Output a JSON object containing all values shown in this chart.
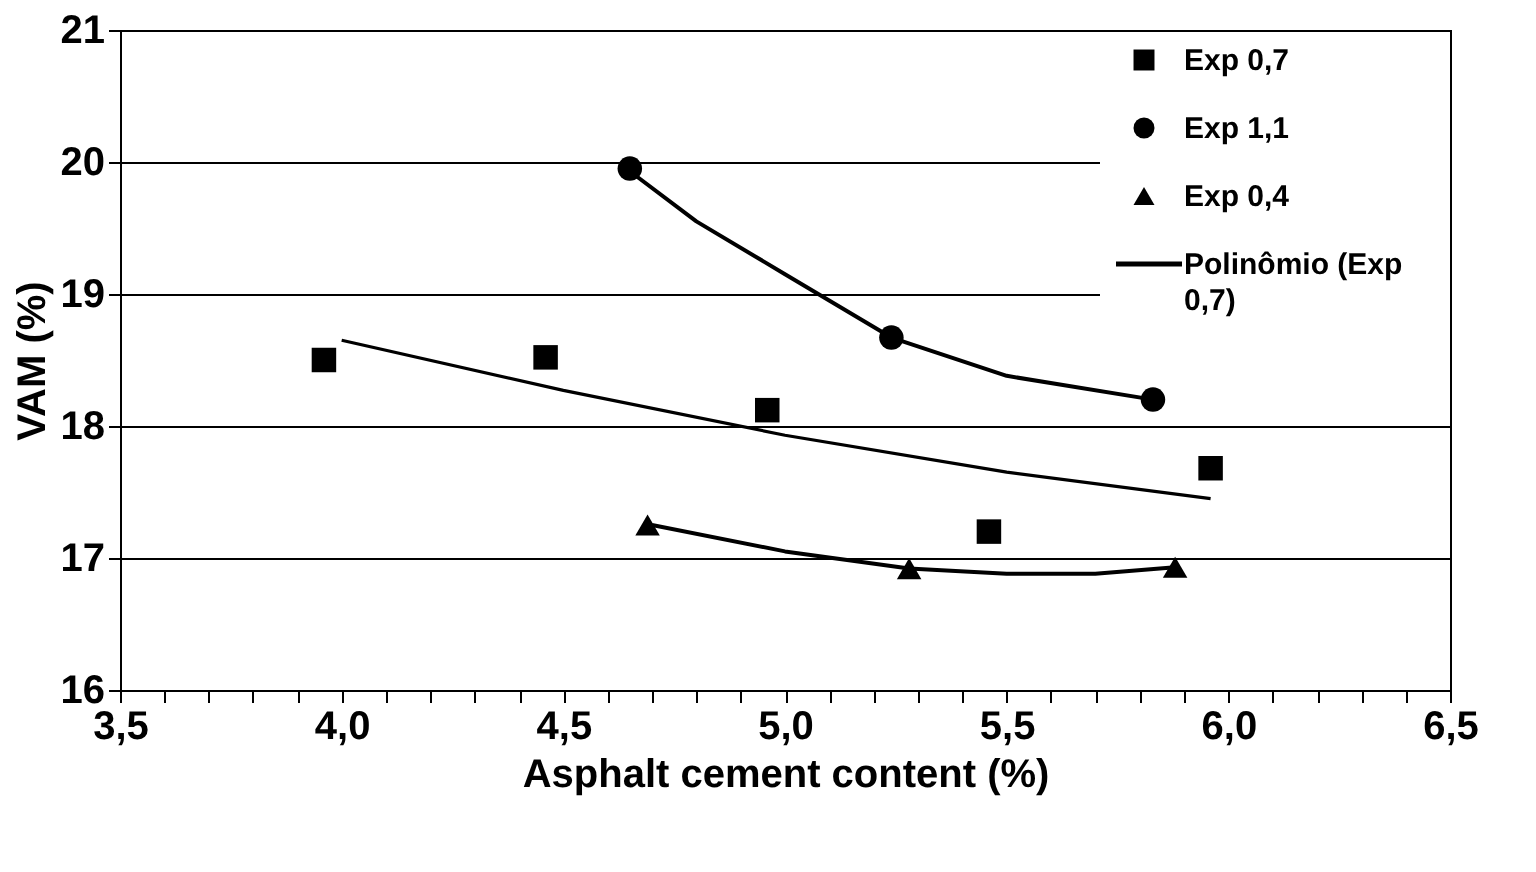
{
  "chart_data": {
    "type": "scatter",
    "xlabel": "Asphalt cement content (%)",
    "ylabel": "VAM (%)",
    "xlim": [
      3.5,
      6.5
    ],
    "ylim": [
      16,
      21
    ],
    "xticks": [
      {
        "value": 3.5,
        "label": "3,5"
      },
      {
        "value": 3.6,
        "label": null
      },
      {
        "value": 3.7,
        "label": null
      },
      {
        "value": 3.8,
        "label": null
      },
      {
        "value": 3.9,
        "label": null
      },
      {
        "value": 4.0,
        "label": "4,0"
      },
      {
        "value": 4.1,
        "label": null
      },
      {
        "value": 4.2,
        "label": null
      },
      {
        "value": 4.3,
        "label": null
      },
      {
        "value": 4.4,
        "label": null
      },
      {
        "value": 4.5,
        "label": "4,5"
      },
      {
        "value": 4.6,
        "label": null
      },
      {
        "value": 4.7,
        "label": null
      },
      {
        "value": 4.8,
        "label": null
      },
      {
        "value": 4.9,
        "label": null
      },
      {
        "value": 5.0,
        "label": "5,0"
      },
      {
        "value": 5.1,
        "label": null
      },
      {
        "value": 5.2,
        "label": null
      },
      {
        "value": 5.3,
        "label": null
      },
      {
        "value": 5.4,
        "label": null
      },
      {
        "value": 5.5,
        "label": "5,5"
      },
      {
        "value": 5.6,
        "label": null
      },
      {
        "value": 5.7,
        "label": null
      },
      {
        "value": 5.8,
        "label": null
      },
      {
        "value": 5.9,
        "label": null
      },
      {
        "value": 6.0,
        "label": "6,0"
      },
      {
        "value": 6.1,
        "label": null
      },
      {
        "value": 6.2,
        "label": null
      },
      {
        "value": 6.3,
        "label": null
      },
      {
        "value": 6.4,
        "label": null
      },
      {
        "value": 6.5,
        "label": "6,5"
      }
    ],
    "yticks": [
      16,
      17,
      18,
      19,
      20,
      21
    ],
    "grid": "y",
    "legend": "top right",
    "series": [
      {
        "name": "Exp 0,7",
        "marker": "square",
        "color": "#000000",
        "x": [
          3.96,
          4.46,
          4.96,
          5.46,
          5.96
        ],
        "values": [
          18.5,
          18.52,
          18.12,
          17.2,
          17.68
        ]
      },
      {
        "name": "Exp 1,1",
        "marker": "circle",
        "color": "#000000",
        "x": [
          4.65,
          5.24,
          5.83
        ],
        "values": [
          19.95,
          18.67,
          18.2
        ]
      },
      {
        "name": "Exp 0,4",
        "marker": "triangle",
        "color": "#000000",
        "x": [
          4.69,
          5.28,
          5.88
        ],
        "values": [
          17.25,
          16.92,
          16.93
        ]
      },
      {
        "name": "Polinômio (Exp 0,7)",
        "type": "line",
        "marker": "none",
        "line_style": "solid",
        "color": "#000000",
        "x": [
          4.0,
          4.5,
          5.0,
          5.5,
          5.96
        ],
        "values": [
          18.65,
          18.27,
          17.93,
          17.65,
          17.45
        ]
      },
      {
        "type": "line",
        "marker": "none",
        "line_style": "solid",
        "color": "#000000",
        "x": [
          4.65,
          4.8,
          5.0,
          5.24,
          5.5,
          5.83
        ],
        "values": [
          19.93,
          19.55,
          19.15,
          18.67,
          18.38,
          18.2
        ]
      },
      {
        "type": "line",
        "marker": "none",
        "line_style": "solid",
        "color": "#000000",
        "x": [
          4.7,
          5.0,
          5.28,
          5.5,
          5.7,
          5.88
        ],
        "values": [
          17.25,
          17.05,
          16.92,
          16.88,
          16.88,
          16.93
        ]
      }
    ]
  }
}
